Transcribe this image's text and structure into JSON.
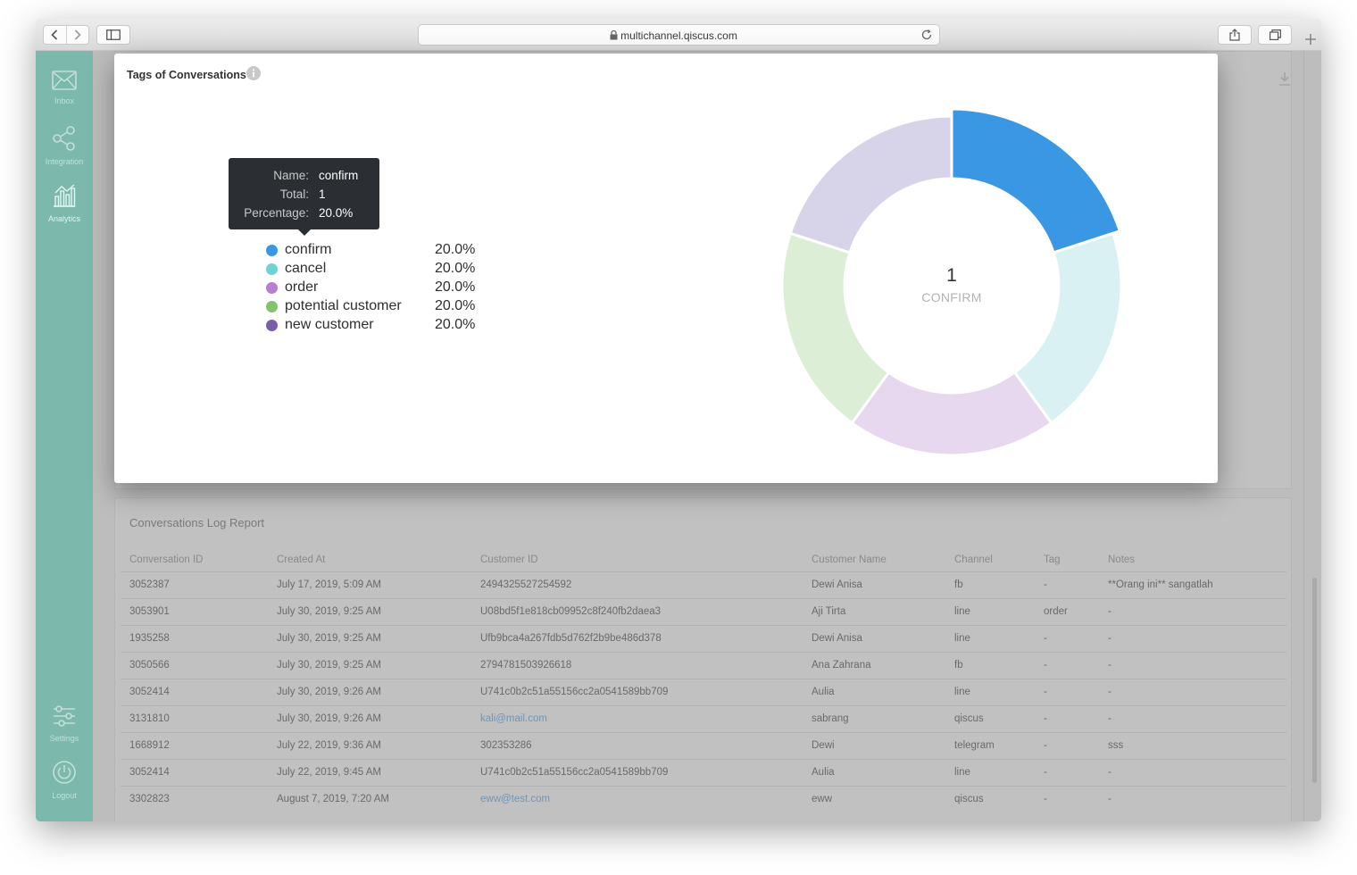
{
  "browser": {
    "url": "multichannel.qiscus.com"
  },
  "sidebar": {
    "items": [
      {
        "label": "Inbox",
        "icon": "mail-icon"
      },
      {
        "label": "Integration",
        "icon": "share-nodes-icon"
      },
      {
        "label": "Analytics",
        "icon": "bar-chart-icon"
      },
      {
        "label": "Settings",
        "icon": "sliders-icon"
      },
      {
        "label": "Logout",
        "icon": "power-icon"
      }
    ],
    "active": "Analytics"
  },
  "modal": {
    "title": "Tags of Conversations",
    "tooltip": {
      "name_key": "Name:",
      "name_value": "confirm",
      "total_key": "Total:",
      "total_value": "1",
      "percentage_key": "Percentage:",
      "percentage_value": "20.0%"
    },
    "center_value": "1",
    "center_label": "CONFIRM"
  },
  "chart_data": {
    "type": "pie",
    "style": "donut",
    "categories": [
      "confirm",
      "cancel",
      "order",
      "potential customer",
      "new customer"
    ],
    "values": [
      20.0,
      20.0,
      20.0,
      20.0,
      20.0
    ],
    "value_labels": [
      "20.0%",
      "20.0%",
      "20.0%",
      "20.0%",
      "20.0%"
    ],
    "legend_colors": [
      "#3a97e3",
      "#6fd3d3",
      "#b77fd0",
      "#82c46e",
      "#7a5fa8"
    ],
    "slice_colors": [
      "#3a97e3",
      "#d9f1f3",
      "#e7d8ef",
      "#dceed6",
      "#d7d3e8"
    ],
    "legend_position": "left"
  },
  "log_report": {
    "title": "Conversations Log Report",
    "columns": [
      "Conversation ID",
      "Created At",
      "Customer ID",
      "Customer Name",
      "Channel",
      "Tag",
      "Notes"
    ],
    "rows": [
      [
        "3052387",
        "July 17, 2019, 5:09 AM",
        "2494325527254592",
        "Dewi Anisa",
        "fb",
        "-",
        "**Orang ini** sangatlah"
      ],
      [
        "3053901",
        "July 30, 2019, 9:25 AM",
        "U08bd5f1e818cb09952c8f240fb2daea3",
        "Aji Tirta",
        "line",
        "order",
        "-"
      ],
      [
        "1935258",
        "July 30, 2019, 9:25 AM",
        "Ufb9bca4a267fdb5d762f2b9be486d378",
        "Dewi Anisa",
        "line",
        "-",
        "-"
      ],
      [
        "3050566",
        "July 30, 2019, 9:25 AM",
        "2794781503926618",
        "Ana Zahrana",
        "fb",
        "-",
        "-"
      ],
      [
        "3052414",
        "July 30, 2019, 9:26 AM",
        "U741c0b2c51a55156cc2a0541589bb709",
        "Aulia",
        "line",
        "-",
        "-"
      ],
      [
        "3131810",
        "July 30, 2019, 9:26 AM",
        "kali@mail.com",
        "sabrang",
        "qiscus",
        "-",
        "-"
      ],
      [
        "1668912",
        "July 22, 2019, 9:36 AM",
        "302353286",
        "Dewi",
        "telegram",
        "-",
        "sss"
      ],
      [
        "3052414",
        "July 22, 2019, 9:45 AM",
        "U741c0b2c51a55156cc2a0541589bb709",
        "Aulia",
        "line",
        "-",
        "-"
      ],
      [
        "3302823",
        "August 7, 2019, 7:20 AM",
        "eww@test.com",
        "eww",
        "qiscus",
        "-",
        "-"
      ]
    ]
  }
}
